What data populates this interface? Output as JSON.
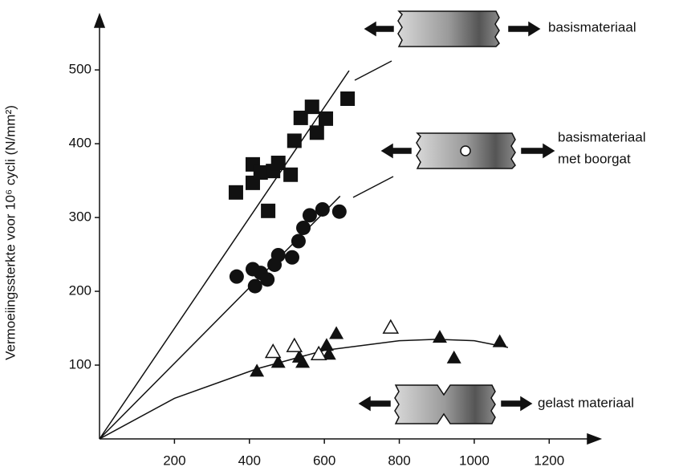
{
  "chart_data": {
    "type": "scatter",
    "ylabel": "Vermoeiingssterkte voor 10⁶ cycli (N/mm²)",
    "xlim": [
      0,
      1330
    ],
    "ylim": [
      0,
      573
    ],
    "xticks": [
      200,
      400,
      600,
      800,
      1000,
      1200
    ],
    "yticks": [
      100,
      200,
      300,
      400,
      500
    ],
    "series": [
      {
        "label_lines": [
          "basismateriaal"
        ],
        "marker": "square",
        "color": "#111111",
        "x": [
          364,
          409,
          409,
          450,
          430,
          463,
          477,
          510,
          520,
          537,
          567,
          580,
          604,
          662
        ],
        "values": [
          334,
          372,
          347,
          309,
          361,
          363,
          374,
          358,
          404,
          435,
          450,
          415,
          434,
          461
        ]
      },
      {
        "label_lines": [
          "basismateriaal",
          "met boorgat"
        ],
        "marker": "circle",
        "color": "#111111",
        "x": [
          366,
          415,
          409,
          430,
          448,
          467,
          477,
          514,
          531,
          544,
          561,
          595,
          640
        ],
        "values": [
          220,
          207,
          230,
          225,
          216,
          236,
          249,
          246,
          268,
          286,
          303,
          311,
          308
        ]
      },
      {
        "label_lines": [
          "gelast materiaal"
        ],
        "marker": "triangle",
        "color": "#111111",
        "x": [
          420,
          477,
          542,
          533,
          606,
          612,
          632,
          908,
          946,
          1068
        ],
        "values": [
          92,
          104,
          104,
          111,
          127,
          115,
          143,
          138,
          110,
          132
        ]
      },
      {
        "marker": "open-triangle",
        "color": "#111111",
        "x": [
          463,
          520,
          585,
          777
        ],
        "values": [
          118,
          126,
          115,
          151
        ]
      }
    ],
    "trend_lines": [
      {
        "x": [
          0,
          666
        ],
        "y": [
          0,
          499
        ]
      },
      {
        "x": [
          0,
          642
        ],
        "y": [
          0,
          329
        ]
      },
      {
        "x": [
          0,
          200,
          420,
          600,
          800,
          900,
          1000,
          1090
        ],
        "y": [
          0,
          55,
          95,
          120,
          133,
          135,
          133,
          124
        ]
      }
    ]
  }
}
